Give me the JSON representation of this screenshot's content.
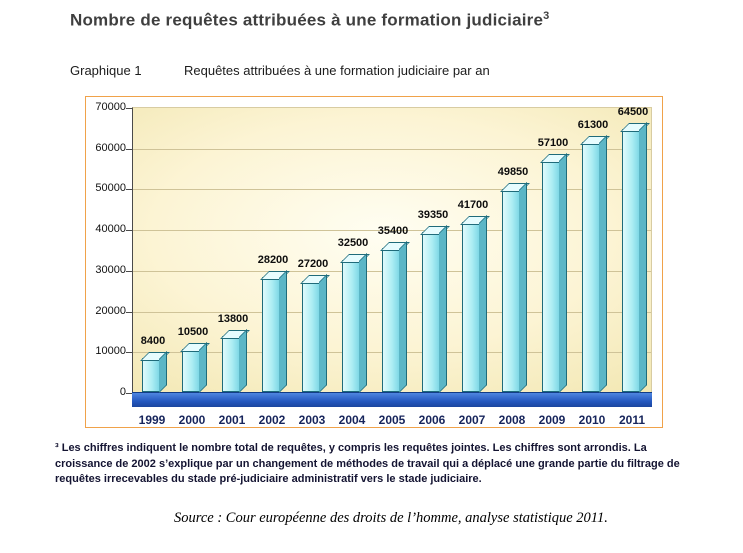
{
  "page": {
    "title": "Nombre de requêtes attribuées à une formation judiciaire",
    "title_superscript": "3",
    "graph_label": "Graphique 1",
    "graph_caption": "Requêtes attribuées à une formation judiciaire par an",
    "footnote": "³ Les chiffres indiquent le nombre total de requêtes, y compris les requêtes jointes. Les chiffres sont arrondis. La croissance de 2002 s’explique par un changement de méthodes de travail qui a déplacé une grande partie du filtrage de requêtes irrecevables du stade pré-judiciaire administratif vers le stade judiciaire.",
    "source": "Source : Cour européenne des droits de l’homme, analyse statistique 2011."
  },
  "chart_data": {
    "type": "bar",
    "title": "Requêtes attribuées à une formation judiciaire par an",
    "categories": [
      "1999",
      "2000",
      "2001",
      "2002",
      "2003",
      "2004",
      "2005",
      "2006",
      "2007",
      "2008",
      "2009",
      "2010",
      "2011"
    ],
    "values": [
      8400,
      10500,
      13800,
      28200,
      27200,
      32500,
      35400,
      39350,
      41700,
      49850,
      57100,
      61300,
      64500
    ],
    "xlabel": "",
    "ylabel": "",
    "ylim": [
      0,
      70000
    ],
    "yticks": [
      0,
      10000,
      20000,
      30000,
      40000,
      50000,
      60000,
      70000
    ],
    "grid": true,
    "legend": false,
    "data_labels": true,
    "style": {
      "bar_face_color": "#aeeef4",
      "bar_side_color": "#5cb6c6",
      "bar_outline_color": "#1f6b7a",
      "floor_color": "#2457bf",
      "plot_background": "#fcf4d4",
      "frame_color": "#f0a24a",
      "x_label_color": "#17255c"
    }
  }
}
